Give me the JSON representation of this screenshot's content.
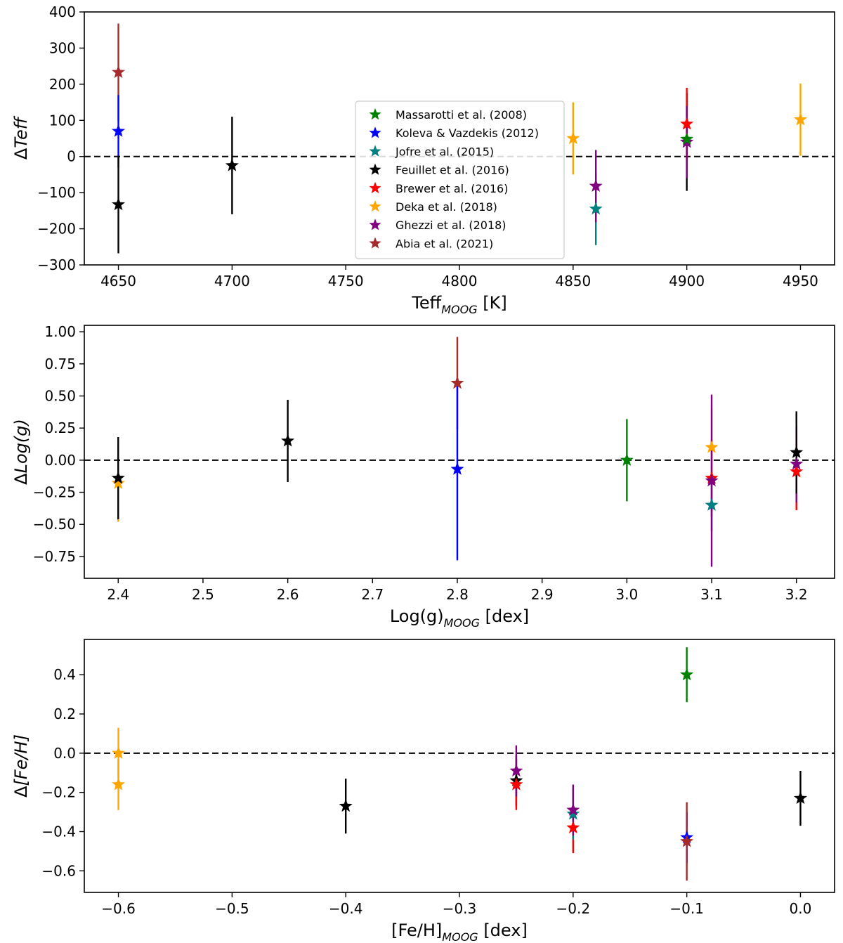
{
  "chart_data": [
    {
      "type": "scatter",
      "id": "teff",
      "ylabel": "ΔTeff",
      "xlabel": "Teff",
      "xlabel_sub": "MOOG",
      "xlabel_unit": " [K]",
      "xlim": [
        4635,
        4965
      ],
      "ylim": [
        -300,
        400
      ],
      "xticks": [
        4650,
        4700,
        4750,
        4800,
        4850,
        4900,
        4950
      ],
      "yticks": [
        -300,
        -200,
        -100,
        0,
        100,
        200,
        300,
        400
      ],
      "xtick_labels": [
        "4650",
        "4700",
        "4750",
        "4800",
        "4850",
        "4900",
        "4950"
      ],
      "ytick_labels": [
        "−300",
        "−200",
        "−100",
        "0",
        "100",
        "200",
        "300",
        "400"
      ],
      "zero_line": true,
      "legend": "center",
      "points": [
        {
          "series": "Abia et al. (2021)",
          "x": 4650,
          "y": 233,
          "err": 135
        },
        {
          "series": "Koleva & Vazdekis (2012)",
          "x": 4650,
          "y": 70,
          "err": 100
        },
        {
          "series": "Feuillet et al. (2016)",
          "x": 4650,
          "y": -133,
          "err": 135
        },
        {
          "series": "Feuillet et al. (2016)",
          "x": 4700,
          "y": -25,
          "err": 135
        },
        {
          "series": "Deka et al. (2018)",
          "x": 4850,
          "y": 50,
          "err": 100
        },
        {
          "series": "Jofre et al. (2015)",
          "x": 4860,
          "y": -145,
          "err": 100
        },
        {
          "series": "Ghezzi et al. (2018)",
          "x": 4860,
          "y": -82,
          "err": 100
        },
        {
          "series": "Feuillet et al. (2016)",
          "x": 4900,
          "y": 40,
          "err": 135
        },
        {
          "series": "Brewer et al. (2016)",
          "x": 4900,
          "y": 90,
          "err": 100
        },
        {
          "series": "Ghezzi et al. (2018)",
          "x": 4900,
          "y": 40,
          "err": 100
        },
        {
          "series": "Massarotti et al. (2008)",
          "x": 4900,
          "y": 48,
          "err": 0
        },
        {
          "series": "Deka et al. (2018)",
          "x": 4950,
          "y": 102,
          "err": 100
        }
      ]
    },
    {
      "type": "scatter",
      "id": "logg",
      "ylabel": "ΔLog(g)",
      "xlabel": "Log(g)",
      "xlabel_sub": "MOOG",
      "xlabel_unit": " [dex]",
      "xlim": [
        2.36,
        3.245
      ],
      "ylim": [
        -0.92,
        1.05
      ],
      "xticks": [
        2.4,
        2.5,
        2.6,
        2.7,
        2.8,
        2.9,
        3.0,
        3.1,
        3.2
      ],
      "yticks": [
        -0.75,
        -0.5,
        -0.25,
        0.0,
        0.25,
        0.5,
        0.75,
        1.0
      ],
      "xtick_labels": [
        "2.4",
        "2.5",
        "2.6",
        "2.7",
        "2.8",
        "2.9",
        "3.0",
        "3.1",
        "3.2"
      ],
      "ytick_labels": [
        "−0.75",
        "−0.50",
        "−0.25",
        "0.00",
        "0.25",
        "0.50",
        "0.75",
        "1.00"
      ],
      "zero_line": true,
      "points": [
        {
          "series": "Deka et al. (2018)",
          "x": 2.4,
          "y": -0.18,
          "err": 0.3
        },
        {
          "series": "Feuillet et al. (2016)",
          "x": 2.4,
          "y": -0.14,
          "err": 0.32
        },
        {
          "series": "Feuillet et al. (2016)",
          "x": 2.6,
          "y": 0.15,
          "err": 0.32
        },
        {
          "series": "Abia et al. (2021)",
          "x": 2.8,
          "y": 0.6,
          "err": 0.36
        },
        {
          "series": "Koleva & Vazdekis (2012)",
          "x": 2.8,
          "y": -0.07,
          "err": 0.71
        },
        {
          "series": "Massarotti et al. (2008)",
          "x": 3.0,
          "y": 0.0,
          "err": 0.32
        },
        {
          "series": "Deka et al. (2018)",
          "x": 3.1,
          "y": 0.1,
          "err": 0.3
        },
        {
          "series": "Brewer et al. (2016)",
          "x": 3.1,
          "y": -0.14,
          "err": 0.3
        },
        {
          "series": "Jofre et al. (2015)",
          "x": 3.1,
          "y": -0.35,
          "err": 0.2
        },
        {
          "series": "Ghezzi et al. (2018)",
          "x": 3.1,
          "y": -0.16,
          "err": 0.67
        },
        {
          "series": "Brewer et al. (2016)",
          "x": 3.2,
          "y": -0.09,
          "err": 0.3
        },
        {
          "series": "Ghezzi et al. (2018)",
          "x": 3.2,
          "y": -0.03,
          "err": 0.3
        },
        {
          "series": "Feuillet et al. (2016)",
          "x": 3.2,
          "y": 0.06,
          "err": 0.32
        }
      ]
    },
    {
      "type": "scatter",
      "id": "feh",
      "ylabel": "Δ[Fe/H]",
      "xlabel": "[Fe/H]",
      "xlabel_sub": "MOOG",
      "xlabel_unit": " [dex]",
      "xlim": [
        -0.63,
        0.03
      ],
      "ylim": [
        -0.71,
        0.58
      ],
      "xticks": [
        -0.6,
        -0.5,
        -0.4,
        -0.3,
        -0.2,
        -0.1,
        0.0
      ],
      "yticks": [
        -0.6,
        -0.4,
        -0.2,
        0.0,
        0.2,
        0.4
      ],
      "xtick_labels": [
        "−0.6",
        "−0.5",
        "−0.4",
        "−0.3",
        "−0.2",
        "−0.1",
        "0.0"
      ],
      "ytick_labels": [
        "−0.6",
        "−0.4",
        "−0.2",
        "0.0",
        "0.2",
        "0.4"
      ],
      "zero_line": true,
      "points": [
        {
          "series": "Deka et al. (2018)",
          "x": -0.6,
          "y": 0.0,
          "err": 0.13
        },
        {
          "series": "Deka et al. (2018)",
          "x": -0.6,
          "y": -0.16,
          "err": 0.13
        },
        {
          "series": "Feuillet et al. (2016)",
          "x": -0.4,
          "y": -0.27,
          "err": 0.14
        },
        {
          "series": "Feuillet et al. (2016)",
          "x": -0.25,
          "y": -0.14,
          "err": 0.13
        },
        {
          "series": "Brewer et al. (2016)",
          "x": -0.25,
          "y": -0.16,
          "err": 0.13
        },
        {
          "series": "Ghezzi et al. (2018)",
          "x": -0.25,
          "y": -0.09,
          "err": 0.13
        },
        {
          "series": "Brewer et al. (2016)",
          "x": -0.2,
          "y": -0.38,
          "err": 0.13
        },
        {
          "series": "Jofre et al. (2015)",
          "x": -0.2,
          "y": -0.31,
          "err": 0.13
        },
        {
          "series": "Ghezzi et al. (2018)",
          "x": -0.2,
          "y": -0.29,
          "err": 0.13
        },
        {
          "series": "Massarotti et al. (2008)",
          "x": -0.1,
          "y": 0.4,
          "err": 0.14
        },
        {
          "series": "Koleva & Vazdekis (2012)",
          "x": -0.1,
          "y": -0.43,
          "err": 0.13
        },
        {
          "series": "Abia et al. (2021)",
          "x": -0.1,
          "y": -0.45,
          "err": 0.2
        },
        {
          "series": "Feuillet et al. (2016)",
          "x": 0.0,
          "y": -0.23,
          "err": 0.14
        }
      ]
    }
  ],
  "series": [
    {
      "name": "Massarotti et al. (2008)",
      "color": "#008000"
    },
    {
      "name": "Koleva & Vazdekis (2012)",
      "color": "#0000ff"
    },
    {
      "name": "Jofre et al. (2015)",
      "color": "#008080"
    },
    {
      "name": "Feuillet et al. (2016)",
      "color": "#000000"
    },
    {
      "name": "Brewer et al. (2016)",
      "color": "#ff0000"
    },
    {
      "name": "Deka et al. (2018)",
      "color": "#ffa500"
    },
    {
      "name": "Ghezzi et al. (2018)",
      "color": "#800080"
    },
    {
      "name": "Abia et al. (2021)",
      "color": "#a52a2a"
    }
  ]
}
